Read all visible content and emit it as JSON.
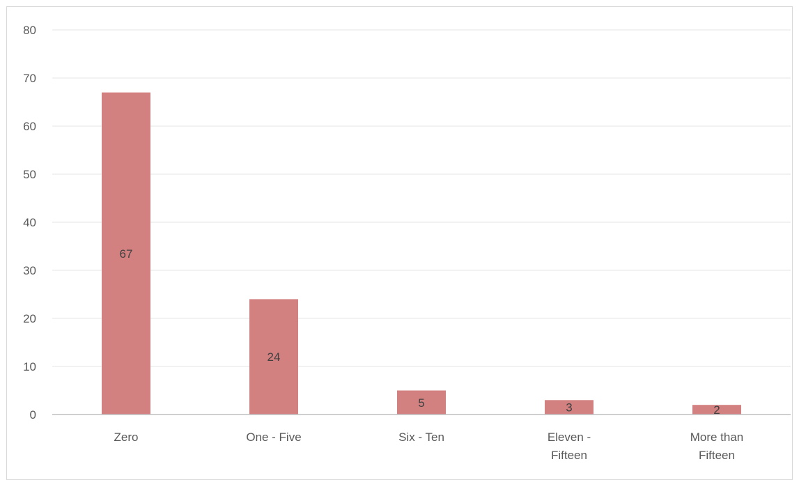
{
  "chart_data": {
    "type": "bar",
    "categories": [
      [
        "Zero"
      ],
      [
        "One - Five"
      ],
      [
        "Six - Ten"
      ],
      [
        "Eleven -",
        "Fifteen"
      ],
      [
        "More than",
        "Fifteen"
      ]
    ],
    "values": [
      67,
      24,
      5,
      3,
      2
    ],
    "data_labels": [
      "67",
      "24",
      "5",
      "3",
      "2"
    ],
    "ylim": [
      0,
      80
    ],
    "yticks": [
      0,
      10,
      20,
      30,
      40,
      50,
      60,
      70,
      80
    ],
    "grid": true,
    "bar_color": "#d38080",
    "grid_color": "#e6e6e6",
    "axis_color": "#bfbfbf"
  }
}
